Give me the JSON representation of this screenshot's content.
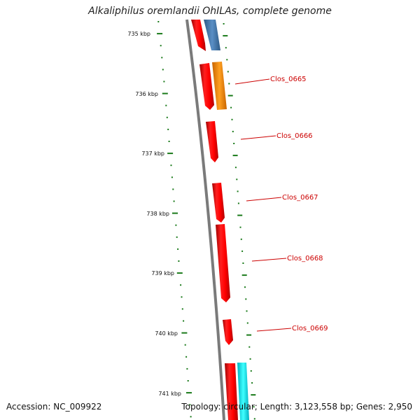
{
  "title": "Alkaliphilus oremlandii OhILAs, complete genome",
  "footer": {
    "accession": "Accession: NC_009922",
    "topology": "Topology: circular; Length: 3,123,558 bp; Genes: 2,950"
  },
  "scale": {
    "labels": [
      "735 kbp",
      "736 kbp",
      "737 kbp",
      "738 kbp",
      "739 kbp",
      "740 kbp",
      "741 kbp"
    ]
  },
  "genes": [
    {
      "name": "Clos_0665"
    },
    {
      "name": "Clos_0666"
    },
    {
      "name": "Clos_0667"
    },
    {
      "name": "Clos_0668"
    },
    {
      "name": "Clos_0669"
    }
  ],
  "colors": {
    "red_gene": "#ff0000",
    "blue_gene": "#4a7fb5",
    "orange_gene": "#ff8c00",
    "cyan_gene": "#00e5ee",
    "backbone": "#7a7a7a",
    "ticks": "#1a7a1a",
    "label": "#cc0000"
  }
}
